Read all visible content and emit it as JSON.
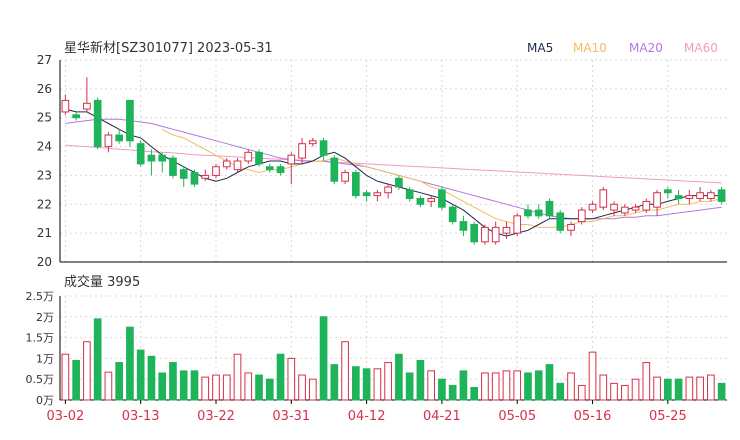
{
  "chart_data": {
    "type": "candlestick",
    "title": "星华新材[SZ301077] 2023-05-31",
    "legend": [
      {
        "label": "MA5",
        "color": "#1f2a4d"
      },
      {
        "label": "MA10",
        "color": "#f3bd63"
      },
      {
        "label": "MA20",
        "color": "#b278e0"
      },
      {
        "label": "MA60",
        "color": "#f29ac3"
      }
    ],
    "colors": {
      "up": "#d7304b",
      "down": "#1fb35a",
      "grid": "#d9d9d9",
      "axis": "#000000",
      "date_label": "#d7304b"
    },
    "price_axis": {
      "ylim": [
        20,
        27
      ],
      "ticks": [
        "27",
        "26",
        "25",
        "24",
        "23",
        "22",
        "21",
        "20"
      ]
    },
    "volume_title": "成交量 3995",
    "volume_axis": {
      "ylim": [
        0,
        25000
      ],
      "ticks": [
        "2.5万",
        "2万",
        "1.5万",
        "1万",
        "0.5万",
        "0万"
      ]
    },
    "x_tick_labels": [
      "03-02",
      "03-13",
      "03-22",
      "03-31",
      "04-12",
      "04-21",
      "05-05",
      "05-16",
      "05-25"
    ],
    "x_tick_index": [
      0,
      7,
      14,
      21,
      28,
      35,
      42,
      49,
      56
    ],
    "candles": [
      {
        "o": 25.2,
        "c": 25.6,
        "h": 25.8,
        "l": 25.1
      },
      {
        "o": 25.1,
        "c": 25.0,
        "h": 25.2,
        "l": 24.9
      },
      {
        "o": 25.3,
        "c": 25.5,
        "h": 26.4,
        "l": 25.2
      },
      {
        "o": 25.6,
        "c": 24.0,
        "h": 25.7,
        "l": 23.9
      },
      {
        "o": 24.0,
        "c": 24.4,
        "h": 24.5,
        "l": 23.8
      },
      {
        "o": 24.4,
        "c": 24.2,
        "h": 24.6,
        "l": 24.1
      },
      {
        "o": 25.6,
        "c": 24.2,
        "h": 25.6,
        "l": 24.0
      },
      {
        "o": 24.1,
        "c": 23.4,
        "h": 24.2,
        "l": 23.3
      },
      {
        "o": 23.7,
        "c": 23.5,
        "h": 23.9,
        "l": 23.0
      },
      {
        "o": 23.7,
        "c": 23.5,
        "h": 23.8,
        "l": 23.1
      },
      {
        "o": 23.6,
        "c": 23.0,
        "h": 23.7,
        "l": 22.9
      },
      {
        "o": 23.2,
        "c": 22.9,
        "h": 23.3,
        "l": 22.6
      },
      {
        "o": 23.1,
        "c": 22.7,
        "h": 23.2,
        "l": 22.6
      },
      {
        "o": 22.9,
        "c": 23.0,
        "h": 23.2,
        "l": 22.8
      },
      {
        "o": 23.0,
        "c": 23.3,
        "h": 23.4,
        "l": 22.9
      },
      {
        "o": 23.3,
        "c": 23.5,
        "h": 23.6,
        "l": 23.2
      },
      {
        "o": 23.2,
        "c": 23.5,
        "h": 23.6,
        "l": 23.1
      },
      {
        "o": 23.5,
        "c": 23.8,
        "h": 23.9,
        "l": 23.4
      },
      {
        "o": 23.8,
        "c": 23.4,
        "h": 23.9,
        "l": 23.3
      },
      {
        "o": 23.3,
        "c": 23.2,
        "h": 23.4,
        "l": 23.1
      },
      {
        "o": 23.3,
        "c": 23.1,
        "h": 23.4,
        "l": 23.0
      },
      {
        "o": 23.4,
        "c": 23.7,
        "h": 23.8,
        "l": 22.7
      },
      {
        "o": 23.6,
        "c": 24.1,
        "h": 24.3,
        "l": 23.4
      },
      {
        "o": 24.1,
        "c": 24.2,
        "h": 24.3,
        "l": 24.0
      },
      {
        "o": 24.2,
        "c": 23.7,
        "h": 24.3,
        "l": 23.5
      },
      {
        "o": 23.6,
        "c": 22.8,
        "h": 23.7,
        "l": 22.7
      },
      {
        "o": 22.8,
        "c": 23.1,
        "h": 23.2,
        "l": 22.7
      },
      {
        "o": 23.1,
        "c": 22.3,
        "h": 23.2,
        "l": 22.2
      },
      {
        "o": 22.4,
        "c": 22.3,
        "h": 22.5,
        "l": 22.1
      },
      {
        "o": 22.3,
        "c": 22.4,
        "h": 22.5,
        "l": 22.1
      },
      {
        "o": 22.4,
        "c": 22.6,
        "h": 22.7,
        "l": 22.2
      },
      {
        "o": 22.9,
        "c": 22.6,
        "h": 23.0,
        "l": 22.5
      },
      {
        "o": 22.5,
        "c": 22.2,
        "h": 22.6,
        "l": 22.1
      },
      {
        "o": 22.2,
        "c": 22.0,
        "h": 22.3,
        "l": 21.9
      },
      {
        "o": 22.1,
        "c": 22.2,
        "h": 22.3,
        "l": 21.9
      },
      {
        "o": 22.5,
        "c": 21.9,
        "h": 22.6,
        "l": 21.8
      },
      {
        "o": 21.9,
        "c": 21.4,
        "h": 22.0,
        "l": 21.3
      },
      {
        "o": 21.4,
        "c": 21.1,
        "h": 21.6,
        "l": 20.9
      },
      {
        "o": 21.3,
        "c": 20.7,
        "h": 21.4,
        "l": 20.6
      },
      {
        "o": 20.7,
        "c": 21.2,
        "h": 21.3,
        "l": 20.6
      },
      {
        "o": 20.7,
        "c": 21.2,
        "h": 21.4,
        "l": 20.6
      },
      {
        "o": 21.0,
        "c": 21.2,
        "h": 21.4,
        "l": 20.8
      },
      {
        "o": 21.0,
        "c": 21.6,
        "h": 21.7,
        "l": 20.9
      },
      {
        "o": 21.8,
        "c": 21.6,
        "h": 22.0,
        "l": 21.5
      },
      {
        "o": 21.8,
        "c": 21.6,
        "h": 22.0,
        "l": 21.5
      },
      {
        "o": 22.1,
        "c": 21.6,
        "h": 22.2,
        "l": 21.5
      },
      {
        "o": 21.7,
        "c": 21.1,
        "h": 21.8,
        "l": 21.0
      },
      {
        "o": 21.1,
        "c": 21.3,
        "h": 21.4,
        "l": 20.9
      },
      {
        "o": 21.4,
        "c": 21.8,
        "h": 21.9,
        "l": 21.3
      },
      {
        "o": 21.8,
        "c": 22.0,
        "h": 22.1,
        "l": 21.7
      },
      {
        "o": 21.9,
        "c": 22.5,
        "h": 22.6,
        "l": 21.8
      },
      {
        "o": 21.8,
        "c": 22.0,
        "h": 22.1,
        "l": 21.6
      },
      {
        "o": 21.7,
        "c": 21.9,
        "h": 22.0,
        "l": 21.6
      },
      {
        "o": 21.8,
        "c": 21.9,
        "h": 22.0,
        "l": 21.7
      },
      {
        "o": 21.8,
        "c": 22.1,
        "h": 22.2,
        "l": 21.7
      },
      {
        "o": 21.9,
        "c": 22.4,
        "h": 22.5,
        "l": 21.6
      },
      {
        "o": 22.5,
        "c": 22.4,
        "h": 22.6,
        "l": 22.2
      },
      {
        "o": 22.3,
        "c": 22.2,
        "h": 22.5,
        "l": 22.0
      },
      {
        "o": 22.2,
        "c": 22.3,
        "h": 22.5,
        "l": 22.0
      },
      {
        "o": 22.2,
        "c": 22.4,
        "h": 22.6,
        "l": 22.1
      },
      {
        "o": 22.2,
        "c": 22.4,
        "h": 22.5,
        "l": 22.1
      },
      {
        "o": 22.5,
        "c": 22.1,
        "h": 22.6,
        "l": 22.0
      }
    ],
    "volumes": [
      11000,
      9500,
      14000,
      19500,
      6700,
      9000,
      17500,
      12000,
      10500,
      6500,
      9000,
      7000,
      7000,
      5500,
      6000,
      6000,
      11000,
      6500,
      6000,
      5000,
      11000,
      10000,
      6000,
      5000,
      20000,
      8500,
      14000,
      8000,
      7500,
      7500,
      9000,
      11000,
      6500,
      9500,
      7000,
      5000,
      3500,
      7000,
      3000,
      6500,
      6500,
      7000,
      7000,
      6500,
      7000,
      8500,
      4000,
      6500,
      3500,
      11500,
      6000,
      4000,
      3500,
      5000,
      9000,
      5500,
      5000,
      5000,
      5500,
      5500,
      6000,
      4000
    ],
    "ma5": [
      25.3,
      25.2,
      25.2,
      25.0,
      24.8,
      24.6,
      24.4,
      24.3,
      24.0,
      23.7,
      23.5,
      23.3,
      23.1,
      22.9,
      22.8,
      22.9,
      23.1,
      23.3,
      23.4,
      23.5,
      23.5,
      23.4,
      23.4,
      23.5,
      23.7,
      23.8,
      23.6,
      23.3,
      23.0,
      22.8,
      22.7,
      22.6,
      22.5,
      22.4,
      22.3,
      22.2,
      22.0,
      21.8,
      21.5,
      21.2,
      21.0,
      20.9,
      21.0,
      21.1,
      21.3,
      21.5,
      21.5,
      21.5,
      21.5,
      21.5,
      21.6,
      21.7,
      21.8,
      21.9,
      22.0,
      22.0,
      22.1,
      22.2,
      22.3,
      22.3,
      22.3,
      22.3
    ],
    "ma10": [
      null,
      null,
      null,
      null,
      null,
      null,
      null,
      null,
      null,
      24.6,
      24.4,
      24.3,
      24.1,
      23.9,
      23.7,
      23.5,
      23.3,
      23.2,
      23.1,
      23.2,
      23.2,
      23.3,
      23.4,
      23.5,
      23.5,
      23.6,
      23.5,
      23.4,
      23.3,
      23.2,
      23.1,
      23.0,
      22.9,
      22.8,
      22.6,
      22.5,
      22.3,
      22.1,
      21.9,
      21.7,
      21.5,
      21.4,
      21.3,
      21.3,
      21.2,
      21.2,
      21.2,
      21.3,
      21.4,
      21.4,
      21.5,
      21.6,
      21.6,
      21.7,
      21.8,
      21.8,
      21.9,
      22.0,
      22.0,
      22.1,
      22.1,
      22.2
    ],
    "ma20": [
      24.8,
      24.85,
      24.9,
      24.95,
      24.95,
      24.95,
      24.9,
      24.85,
      24.8,
      24.7,
      24.6,
      24.5,
      24.4,
      24.3,
      24.2,
      24.1,
      24.0,
      23.9,
      23.8,
      23.7,
      23.6,
      23.55,
      23.5,
      23.5,
      23.5,
      23.45,
      23.4,
      23.35,
      23.3,
      23.2,
      23.1,
      23.0,
      22.9,
      22.8,
      22.7,
      22.6,
      22.5,
      22.4,
      22.3,
      22.2,
      22.1,
      22.0,
      21.9,
      21.8,
      21.7,
      21.6,
      21.55,
      21.5,
      21.5,
      21.5,
      21.5,
      21.5,
      21.55,
      21.55,
      21.6,
      21.6,
      21.65,
      21.7,
      21.75,
      21.8,
      21.85,
      21.9
    ],
    "ma60": [
      24.05,
      24.02,
      24.0,
      23.97,
      23.94,
      23.91,
      23.88,
      23.85,
      23.82,
      23.8,
      23.78,
      23.75,
      23.72,
      23.7,
      23.68,
      23.66,
      23.64,
      23.62,
      23.6,
      23.58,
      23.56,
      23.54,
      23.52,
      23.5,
      23.48,
      23.46,
      23.44,
      23.42,
      23.4,
      23.38,
      23.36,
      23.34,
      23.32,
      23.3,
      23.28,
      23.26,
      23.24,
      23.22,
      23.2,
      23.18,
      23.16,
      23.14,
      23.12,
      23.1,
      23.08,
      23.06,
      23.04,
      23.02,
      23.0,
      22.98,
      22.96,
      22.94,
      22.92,
      22.9,
      22.88,
      22.86,
      22.84,
      22.82,
      22.8,
      22.78,
      22.76,
      22.74
    ]
  }
}
